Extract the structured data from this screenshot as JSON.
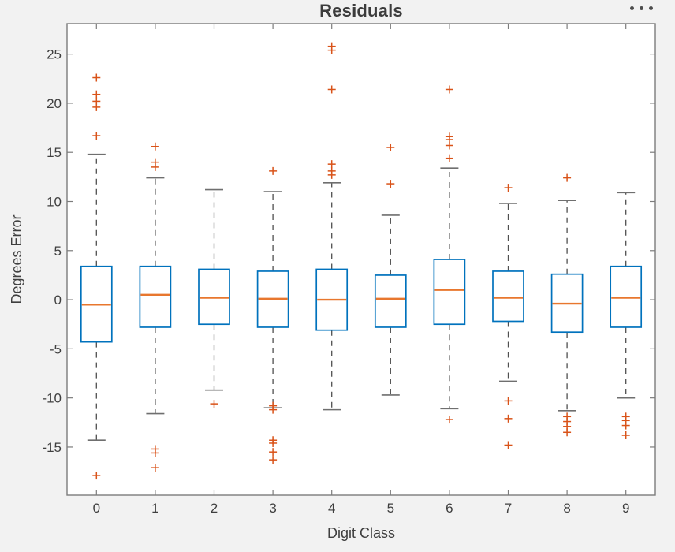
{
  "figure": {
    "title": "Residuals"
  },
  "toolbar": {
    "icon": "ellipsis-icon",
    "dot_count": 3
  },
  "chart_data": {
    "type": "boxplot",
    "title": "Residuals",
    "xlabel": "Digit Class",
    "ylabel": "Degrees Error",
    "categories": [
      "0",
      "1",
      "2",
      "3",
      "4",
      "5",
      "6",
      "7",
      "8",
      "9"
    ],
    "y_ticks": [
      25,
      20,
      15,
      10,
      5,
      0,
      -5,
      -10,
      -15
    ],
    "ylim": [
      -19.9,
      28.1
    ],
    "grid": false,
    "legend": null,
    "outlier_marker": "+",
    "boxes": [
      {
        "category": "0",
        "whisker_low": -14.3,
        "q1": -4.3,
        "median": -0.5,
        "q3": 3.4,
        "whisker_high": 14.8,
        "outliers_high": [
          22.6,
          20.9,
          20.2,
          19.6,
          16.7
        ],
        "outliers_low": [
          -17.9
        ]
      },
      {
        "category": "1",
        "whisker_low": -11.6,
        "q1": -2.8,
        "median": 0.5,
        "q3": 3.4,
        "whisker_high": 12.4,
        "outliers_high": [
          15.6,
          14.0,
          13.5
        ],
        "outliers_low": [
          -15.2,
          -15.6,
          -17.1
        ]
      },
      {
        "category": "2",
        "whisker_low": -9.2,
        "q1": -2.5,
        "median": 0.2,
        "q3": 3.1,
        "whisker_high": 11.2,
        "outliers_high": [],
        "outliers_low": [
          -10.6
        ]
      },
      {
        "category": "3",
        "whisker_low": -11.0,
        "q1": -2.8,
        "median": 0.1,
        "q3": 2.9,
        "whisker_high": 11.0,
        "outliers_high": [
          13.1
        ],
        "outliers_low": [
          -10.8,
          -11.2,
          -14.3,
          -14.6,
          -15.5,
          -16.3
        ]
      },
      {
        "category": "4",
        "whisker_low": -11.2,
        "q1": -3.1,
        "median": 0.0,
        "q3": 3.1,
        "whisker_high": 11.9,
        "outliers_high": [
          25.8,
          25.4,
          21.4,
          13.8,
          13.1,
          12.7
        ],
        "outliers_low": []
      },
      {
        "category": "5",
        "whisker_low": -9.7,
        "q1": -2.8,
        "median": 0.1,
        "q3": 2.5,
        "whisker_high": 8.6,
        "outliers_high": [
          15.5,
          11.8
        ],
        "outliers_low": []
      },
      {
        "category": "6",
        "whisker_low": -11.1,
        "q1": -2.5,
        "median": 1.0,
        "q3": 4.1,
        "whisker_high": 13.4,
        "outliers_high": [
          21.4,
          16.6,
          16.3,
          15.7,
          14.4
        ],
        "outliers_low": [
          -12.2
        ]
      },
      {
        "category": "7",
        "whisker_low": -8.3,
        "q1": -2.2,
        "median": 0.2,
        "q3": 2.9,
        "whisker_high": 9.8,
        "outliers_high": [
          11.4
        ],
        "outliers_low": [
          -10.3,
          -12.1,
          -14.8
        ]
      },
      {
        "category": "8",
        "whisker_low": -11.3,
        "q1": -3.3,
        "median": -0.4,
        "q3": 2.6,
        "whisker_high": 10.1,
        "outliers_high": [
          12.4
        ],
        "outliers_low": [
          -11.9,
          -12.4,
          -12.9,
          -13.5
        ]
      },
      {
        "category": "9",
        "whisker_low": -10.0,
        "q1": -2.8,
        "median": 0.2,
        "q3": 3.4,
        "whisker_high": 10.9,
        "outliers_high": [],
        "outliers_low": [
          -11.9,
          -12.3,
          -12.8,
          -13.8
        ]
      }
    ],
    "style": {
      "box_color": "#0072BD",
      "median_color": "#E8772E",
      "outlier_color": "#D95319",
      "whisker_color": "#4F4F4F",
      "cap_color": "#6F6F6F",
      "axis_color": "#7C7C7C",
      "text_color": "#3F3F3F",
      "plot_bg": "#FFFFFF",
      "figure_bg": "#F2F2F2"
    }
  }
}
